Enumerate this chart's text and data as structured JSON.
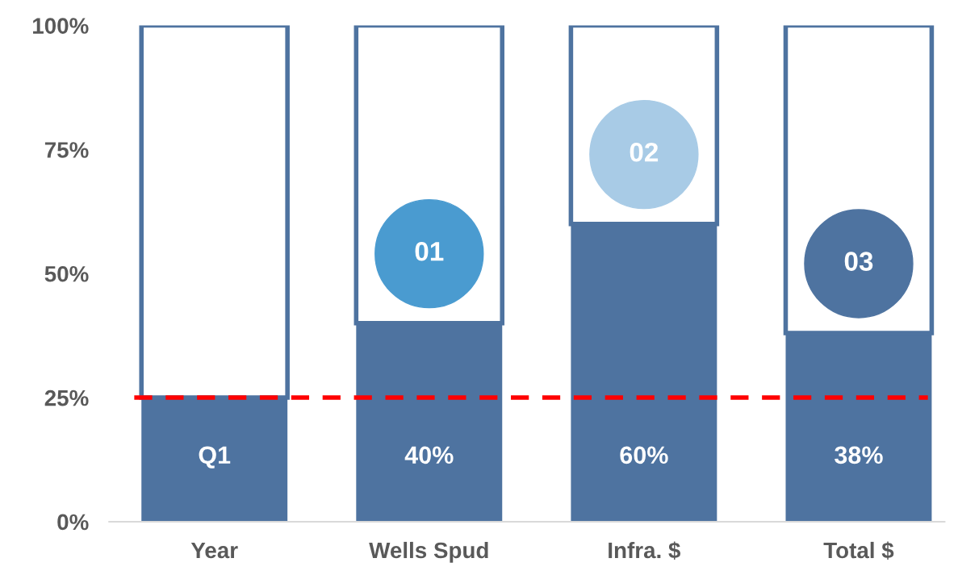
{
  "chart_data": {
    "type": "bar",
    "stacked": true,
    "categories": [
      "Year",
      "Wells Spud",
      "Infra. $",
      "Total $"
    ],
    "series": [
      {
        "color": "#4e73a0",
        "values": [
          25,
          40,
          60,
          38
        ],
        "value_labels": [
          "Q1",
          "40%",
          "60%",
          "38%"
        ]
      },
      {
        "color": "#ffffff",
        "values": [
          75,
          60,
          40,
          62
        ]
      }
    ],
    "ylim": [
      0,
      100
    ],
    "yticks": [
      {
        "value": 0,
        "label": "0%"
      },
      {
        "value": 25,
        "label": "25%"
      },
      {
        "value": 50,
        "label": "50%"
      },
      {
        "value": 75,
        "label": "75%"
      },
      {
        "value": 100,
        "label": "100%"
      }
    ],
    "ref_lines": [
      {
        "axis": "y",
        "value": 25,
        "color": "#ff0000",
        "line_style": "dashed"
      }
    ],
    "annotations": [
      "01",
      "02",
      "03"
    ],
    "grid": false,
    "legend": false
  }
}
